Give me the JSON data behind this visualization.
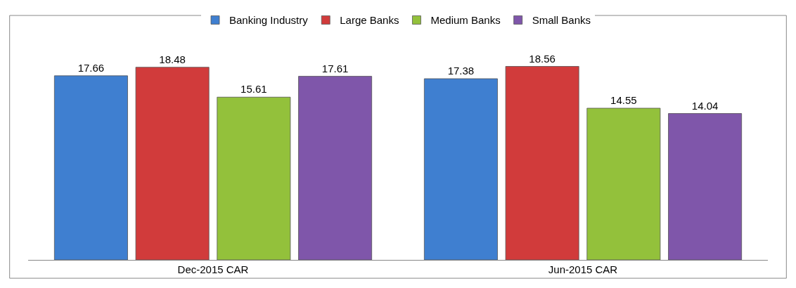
{
  "chart_data": {
    "type": "bar",
    "categories": [
      "Dec-2015 CAR",
      "Jun-2015 CAR"
    ],
    "series": [
      {
        "name": "Banking Industry",
        "color": "#3f7fd0",
        "values": [
          17.66,
          17.38
        ]
      },
      {
        "name": "Large Banks",
        "color": "#d13b3b",
        "values": [
          18.48,
          18.56
        ]
      },
      {
        "name": "Medium Banks",
        "color": "#93c13b",
        "values": [
          15.61,
          14.55
        ]
      },
      {
        "name": "Small Banks",
        "color": "#7f56aa",
        "values": [
          17.61,
          14.04
        ]
      }
    ],
    "data_labels": true,
    "legend": "top",
    "tick_labels": "x"
  }
}
